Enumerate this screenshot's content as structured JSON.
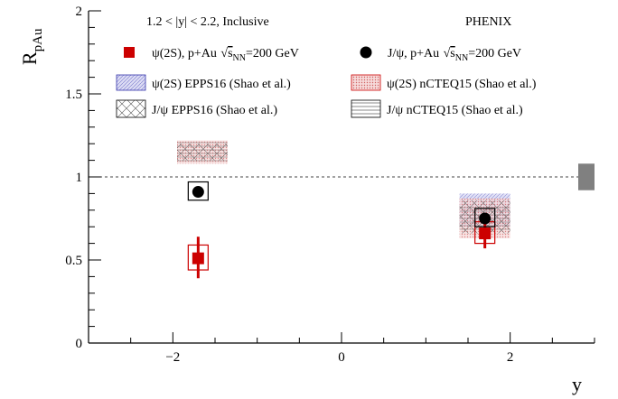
{
  "chart_data": {
    "type": "scatter",
    "xlabel": "y",
    "ylabel_main": "R",
    "ylabel_sub": "pAu",
    "xlim": [
      -3,
      3
    ],
    "ylim": [
      0,
      2
    ],
    "x_ticks": [
      -2,
      0,
      2
    ],
    "x_tick_labels": [
      "−2",
      "0",
      "2"
    ],
    "y_ticks": [
      0,
      0.5,
      1,
      1.5,
      2
    ],
    "y_tick_labels": [
      "0",
      "0.5",
      "1",
      "1.5",
      "2"
    ],
    "reference_line": 1,
    "global_uncertainty": [
      0.92,
      1.08
    ],
    "annotations": {
      "rapidity_range": "1.2 < |y| < 2.2, Inclusive",
      "experiment": "PHENIX"
    },
    "legend": [
      {
        "id": "psi2s",
        "text_main": "ψ(2S), p+Au ",
        "text_sqrt": "s",
        "text_sub": "NN",
        "text_end": "=200 GeV",
        "marker": "square",
        "color": "#cc0000"
      },
      {
        "id": "jpsi",
        "text_main": "J/ψ, p+Au ",
        "text_sqrt": "s",
        "text_sub": "NN",
        "text_end": "=200 GeV",
        "marker": "circle",
        "color": "#000000"
      },
      {
        "id": "psi2s_epps16",
        "text": "ψ(2S) EPPS16 (Shao et al.)",
        "style": "blue-hatch"
      },
      {
        "id": "psi2s_ncteq15",
        "text": "ψ(2S) nCTEQ15 (Shao et al.)",
        "style": "red-dots"
      },
      {
        "id": "jpsi_epps16",
        "text": "J/ψ EPPS16 (Shao et al.)",
        "style": "black-cross"
      },
      {
        "id": "jpsi_ncteq15",
        "text": "J/ψ nCTEQ15 (Shao et al.)",
        "style": "black-lines"
      }
    ],
    "series": [
      {
        "name": "ψ(2S), p+Au",
        "color": "#cc0000",
        "marker": "square",
        "points": [
          {
            "x": -1.7,
            "y": 0.51,
            "stat_low": 0.39,
            "stat_high": 0.64,
            "sys_low": 0.44,
            "sys_high": 0.59
          },
          {
            "x": 1.7,
            "y": 0.66,
            "stat_low": 0.57,
            "stat_high": 0.75,
            "sys_low": 0.6,
            "sys_high": 0.73
          }
        ]
      },
      {
        "name": "J/ψ, p+Au",
        "color": "#000000",
        "marker": "circle",
        "points": [
          {
            "x": -1.7,
            "y": 0.91,
            "sys_low": 0.86,
            "sys_high": 0.97
          },
          {
            "x": 1.7,
            "y": 0.75,
            "sys_low": 0.7,
            "sys_high": 0.81
          }
        ]
      }
    ],
    "theory_bands": [
      {
        "id": "psi2s_epps16",
        "style": "blue-hatch",
        "bands": [
          {
            "x0": 1.4,
            "x1": 2.0,
            "y0": 0.7,
            "y1": 0.9
          }
        ]
      },
      {
        "id": "psi2s_ncteq15",
        "style": "red-dots",
        "bands": [
          {
            "x0": -1.95,
            "x1": -1.35,
            "y0": 1.08,
            "y1": 1.22
          },
          {
            "x0": 1.4,
            "x1": 2.0,
            "y0": 0.63,
            "y1": 0.87
          }
        ]
      },
      {
        "id": "jpsi_epps16",
        "style": "black-cross",
        "bands": [
          {
            "x0": -1.95,
            "x1": -1.35,
            "y0": 1.1,
            "y1": 1.2
          },
          {
            "x0": 1.4,
            "x1": 2.0,
            "y0": 0.66,
            "y1": 0.86
          }
        ]
      },
      {
        "id": "jpsi_ncteq15",
        "style": "black-lines",
        "bands": [
          {
            "x0": -1.95,
            "x1": -1.35,
            "y0": 1.08,
            "y1": 1.21
          },
          {
            "x0": 1.4,
            "x1": 2.0,
            "y0": 0.68,
            "y1": 0.83
          }
        ]
      }
    ]
  }
}
